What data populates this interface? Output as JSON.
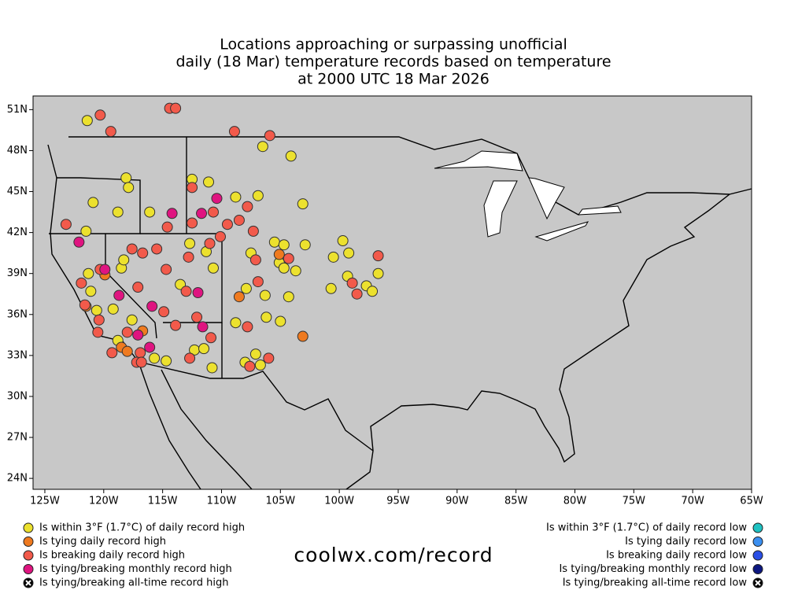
{
  "chart_data": {
    "type": "scatter",
    "title_lines": [
      "Locations approaching or surpassing unofficial",
      "daily (18 Mar) temperature records based on temperature",
      "at 2000 UTC 18 Mar 2026"
    ],
    "footer": "coolwx.com/record",
    "xlim": [
      -126,
      -65
    ],
    "ylim": [
      23.2,
      52
    ],
    "xticks": [
      {
        "value": -125,
        "label": "125W"
      },
      {
        "value": -120,
        "label": "120W"
      },
      {
        "value": -115,
        "label": "115W"
      },
      {
        "value": -110,
        "label": "110W"
      },
      {
        "value": -105,
        "label": "105W"
      },
      {
        "value": -100,
        "label": "100W"
      },
      {
        "value": -95,
        "label": "95W"
      },
      {
        "value": -90,
        "label": "90W"
      },
      {
        "value": -85,
        "label": "85W"
      },
      {
        "value": -80,
        "label": "80W"
      },
      {
        "value": -75,
        "label": "75W"
      },
      {
        "value": -70,
        "label": "70W"
      },
      {
        "value": -65,
        "label": "65W"
      }
    ],
    "yticks": [
      {
        "value": 24,
        "label": "24N"
      },
      {
        "value": 27,
        "label": "27N"
      },
      {
        "value": 30,
        "label": "30N"
      },
      {
        "value": 33,
        "label": "33N"
      },
      {
        "value": 36,
        "label": "36N"
      },
      {
        "value": 39,
        "label": "39N"
      },
      {
        "value": 42,
        "label": "42N"
      },
      {
        "value": 45,
        "label": "45N"
      },
      {
        "value": 48,
        "label": "48N"
      },
      {
        "value": 51,
        "label": "51N"
      }
    ],
    "series": [
      {
        "name": "Is within 3°F (1.7°C) of daily record high",
        "color": "#ece12e",
        "side": "left",
        "marker": "dot",
        "x": [
          -121.4,
          -104.1,
          -106.5,
          -120.9,
          -118.1,
          -117.9,
          -118.8,
          -112.5,
          -111.1,
          -106.9,
          -108.8,
          -103.1,
          -121.5,
          -116.1,
          -105.5,
          -104.7,
          -102.9,
          -107.5,
          -105.1,
          -104.7,
          -103.7,
          -99.7,
          -99.2,
          -100.5,
          -96.7,
          -99.3,
          -97.7,
          -97.2,
          -100.7,
          -104.3,
          -106.3,
          -111.3,
          -112.7,
          -110.7,
          -107.9,
          -118.5,
          -118.3,
          -121.3,
          -121.1,
          -120.6,
          -119.2,
          -117.6,
          -118.8,
          -115.7,
          -114.7,
          -112.3,
          -111.5,
          -110.8,
          -108.8,
          -106.2,
          -105.0,
          -107.1,
          -108.0,
          -106.7,
          -113.5
        ],
        "values": [
          50.2,
          47.6,
          48.3,
          44.2,
          46.0,
          45.3,
          43.5,
          45.9,
          45.7,
          44.7,
          44.6,
          44.1,
          42.1,
          43.5,
          41.3,
          41.1,
          41.1,
          40.5,
          39.8,
          39.4,
          39.2,
          41.4,
          40.5,
          40.2,
          39.0,
          38.8,
          38.1,
          37.7,
          37.9,
          37.3,
          37.4,
          40.6,
          41.2,
          39.4,
          37.9,
          39.4,
          40.0,
          39.0,
          37.7,
          36.3,
          36.4,
          35.6,
          34.1,
          32.8,
          32.6,
          33.4,
          33.5,
          32.1,
          35.4,
          35.8,
          35.5,
          33.1,
          32.5,
          32.3,
          38.2
        ]
      },
      {
        "name": "Is tying daily record high",
        "color": "#ef7a1f",
        "side": "left",
        "marker": "dot",
        "x": [
          -119.9,
          -108.5,
          -103.1,
          -105.1,
          -116.7,
          -118.5,
          -118.0,
          -121.5
        ],
        "values": [
          38.9,
          37.3,
          34.4,
          40.4,
          34.8,
          33.6,
          33.3,
          36.6
        ]
      },
      {
        "name": "Is breaking daily record high",
        "color": "#f25a4b",
        "side": "left",
        "marker": "dot",
        "x": [
          -120.3,
          -119.4,
          -114.4,
          -113.9,
          -108.9,
          -105.9,
          -123.2,
          -112.5,
          -110.7,
          -107.8,
          -108.5,
          -109.5,
          -114.6,
          -112.5,
          -110.1,
          -107.3,
          -120.3,
          -117.6,
          -116.7,
          -115.5,
          -112.8,
          -111.0,
          -107.1,
          -114.7,
          -106.9,
          -104.3,
          -96.7,
          -98.5,
          -98.9,
          -117.1,
          -113.0,
          -121.9,
          -121.6,
          -120.5,
          -120.4,
          -119.3,
          -118.0,
          -116.9,
          -117.2,
          -116.8,
          -114.9,
          -112.1,
          -112.7,
          -110.9,
          -107.8,
          -106.0,
          -107.6,
          -113.9
        ],
        "values": [
          50.6,
          49.4,
          51.1,
          51.1,
          49.4,
          49.1,
          42.6,
          45.3,
          43.5,
          43.9,
          42.9,
          42.6,
          42.4,
          42.7,
          41.7,
          42.1,
          39.3,
          40.8,
          40.5,
          40.8,
          40.2,
          41.2,
          40.0,
          39.3,
          38.4,
          40.1,
          40.3,
          37.5,
          38.3,
          38.0,
          37.7,
          38.3,
          36.7,
          34.7,
          35.6,
          33.2,
          34.7,
          33.2,
          32.5,
          32.5,
          36.2,
          35.8,
          32.8,
          34.3,
          35.1,
          32.8,
          32.2,
          35.2
        ]
      },
      {
        "name": "Is tying/breaking monthly record high",
        "color": "#df1480",
        "side": "left",
        "marker": "dot",
        "x": [
          -122.1,
          -119.9,
          -110.4,
          -114.2,
          -111.7,
          -112.0,
          -118.7,
          -115.9,
          -111.6,
          -117.1,
          -116.1
        ],
        "values": [
          41.3,
          39.3,
          44.5,
          43.4,
          43.4,
          37.6,
          37.4,
          36.6,
          35.1,
          34.5,
          33.6
        ]
      },
      {
        "name": "Is tying/breaking all-time record high",
        "color": "#000000",
        "side": "left",
        "marker": "x",
        "x": [],
        "values": []
      },
      {
        "name": "Is within 3°F (1.7°C) of daily record low",
        "color": "#1fc2c2",
        "side": "right",
        "marker": "dot",
        "x": [],
        "values": []
      },
      {
        "name": "Is tying daily record low",
        "color": "#3b8ff0",
        "side": "right",
        "marker": "dot",
        "x": [],
        "values": []
      },
      {
        "name": "Is breaking daily record low",
        "color": "#2a4fe6",
        "side": "right",
        "marker": "dot",
        "x": [],
        "values": []
      },
      {
        "name": "Is tying/breaking monthly record low",
        "color": "#0c1780",
        "side": "right",
        "marker": "dot",
        "x": [],
        "values": []
      },
      {
        "name": "Is tying/breaking all-time record low",
        "color": "#000000",
        "side": "right",
        "marker": "x",
        "x": [],
        "values": []
      }
    ]
  }
}
